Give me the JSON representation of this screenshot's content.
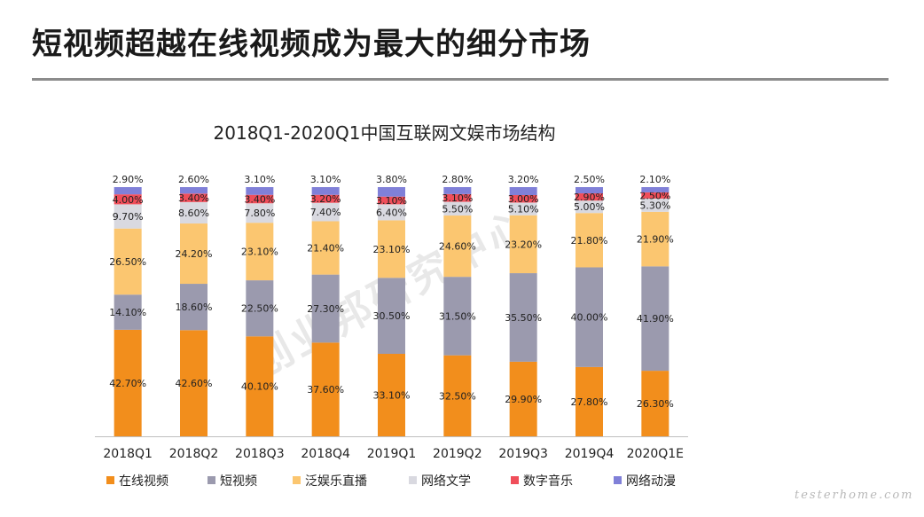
{
  "slide": {
    "title": "短视频超越在线视频成为最大的细分市场",
    "watermark": "创业邦研究中心",
    "site_mark": "testerhome.com"
  },
  "chart_data": {
    "type": "bar",
    "stacked": true,
    "title": "2018Q1-2020Q1中国互联网文娱市场结构",
    "categories": [
      "2018Q1",
      "2018Q2",
      "2018Q3",
      "2018Q4",
      "2019Q1",
      "2019Q2",
      "2019Q3",
      "2019Q4",
      "2020Q1E"
    ],
    "series": [
      {
        "name": "在线视频",
        "color": "#f28e1c",
        "values": [
          42.7,
          42.6,
          40.1,
          37.6,
          33.1,
          32.5,
          29.9,
          27.8,
          26.3
        ],
        "labels": [
          "42.70%",
          "42.60%",
          "40.10%",
          "37.60%",
          "33.10%",
          "32.50%",
          "29.90%",
          "27.80%",
          "26.30%"
        ]
      },
      {
        "name": "短视频",
        "color": "#9b9aae",
        "values": [
          14.1,
          18.6,
          22.5,
          27.3,
          30.5,
          31.5,
          35.5,
          40.0,
          41.9
        ],
        "labels": [
          "14.10%",
          "18.60%",
          "22.50%",
          "27.30%",
          "30.50%",
          "31.50%",
          "35.50%",
          "40.00%",
          "41.90%"
        ]
      },
      {
        "name": "泛娱乐直播",
        "color": "#fbc670",
        "values": [
          26.5,
          24.2,
          23.1,
          21.4,
          23.1,
          24.6,
          23.2,
          21.8,
          21.9
        ],
        "labels": [
          "26.50%",
          "24.20%",
          "23.10%",
          "21.40%",
          "23.10%",
          "24.60%",
          "23.20%",
          "21.80%",
          "21.90%"
        ]
      },
      {
        "name": "网络文学",
        "color": "#d9d9e0",
        "values": [
          9.7,
          8.6,
          7.8,
          7.4,
          6.4,
          5.5,
          5.1,
          5.0,
          5.3
        ],
        "labels": [
          "9.70%",
          "8.60%",
          "7.80%",
          "7.40%",
          "6.40%",
          "5.50%",
          "5.10%",
          "5.00%",
          "5.30%"
        ]
      },
      {
        "name": "数字音乐",
        "color": "#f04e5a",
        "values": [
          4.0,
          3.4,
          3.4,
          3.2,
          3.1,
          3.1,
          3.0,
          2.9,
          2.5
        ],
        "labels": [
          "4.00%",
          "3.40%",
          "3.40%",
          "3.20%",
          "3.10%",
          "3.10%",
          "3.00%",
          "2.90%",
          "2.50%"
        ]
      },
      {
        "name": "网络动漫",
        "color": "#8080d8",
        "values": [
          2.9,
          2.6,
          3.1,
          3.1,
          3.8,
          2.8,
          3.2,
          2.5,
          2.1
        ],
        "labels": [
          "2.90%",
          "2.60%",
          "3.10%",
          "3.10%",
          "3.80%",
          "2.80%",
          "3.20%",
          "2.50%",
          "2.10%"
        ]
      }
    ],
    "ylim": [
      0,
      100
    ],
    "legend_position": "bottom",
    "grid": false
  }
}
